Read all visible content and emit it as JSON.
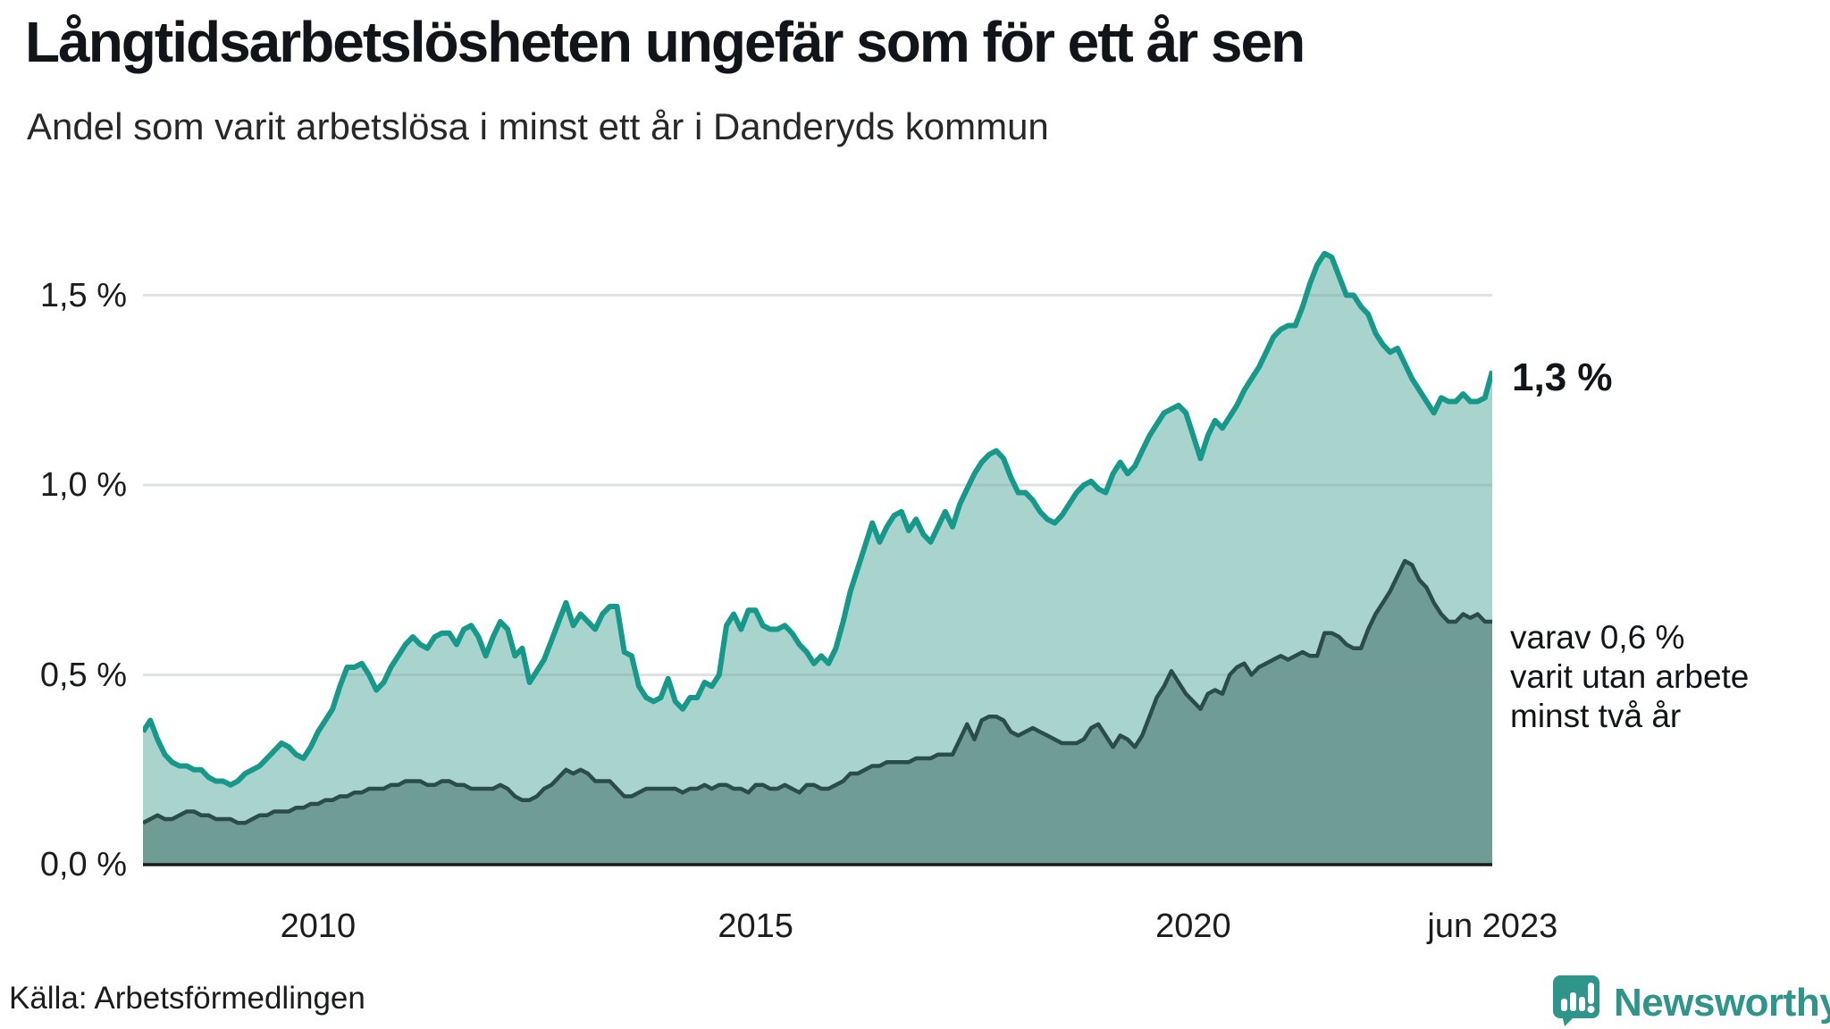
{
  "header": {
    "title": "Långtidsarbetslösheten ungefär som för ett år sen",
    "subtitle": "Andel som varit arbetslösa i minst ett år i Danderyds kommun"
  },
  "colors": {
    "line_1yr": "#16988a",
    "fill_1yr": "#a9d4cd",
    "line_2yr": "#2c4c47",
    "fill_2yr": "#6f9c95",
    "gridline": "rgba(140,150,152,0.28)",
    "axis": "#191b1c",
    "brand_teal": "#2f9489"
  },
  "labels": {
    "end_value_label": "1,3 %",
    "annotation_line1": "varav 0,6 %",
    "annotation_line2": "varit utan arbete",
    "annotation_line3": "minst två år",
    "source": "Källa: Arbetsförmedlingen",
    "brand": "Newsworthy"
  },
  "chart_data": {
    "type": "area",
    "title": "Långtidsarbetslösheten ungefär som för ett år sen",
    "subtitle": "Andel som varit arbetslösa i minst ett år i Danderyds kommun",
    "unit": "%",
    "frequency": "monthly",
    "x_start": "2008-01",
    "x_end": "2023-06",
    "ylim": [
      0,
      1.7
    ],
    "grid": "horizontal",
    "y_ticks": [
      {
        "value": 1.5,
        "label": "1,5 %"
      },
      {
        "value": 1.0,
        "label": "1,0 %"
      },
      {
        "value": 0.5,
        "label": "0,5 %"
      },
      {
        "value": 0.0,
        "label": "0,0 %"
      }
    ],
    "x_ticks": [
      {
        "year": 2010.0,
        "label": "2010"
      },
      {
        "year": 2015.0,
        "label": "2015"
      },
      {
        "year": 2020.0,
        "label": "2020"
      },
      {
        "year": 2023.42,
        "label": "jun 2023"
      }
    ],
    "series": [
      {
        "name": "Arbetslösa minst ett år",
        "end_label": "1,3 %",
        "values": [
          0.35,
          0.38,
          0.33,
          0.29,
          0.27,
          0.26,
          0.26,
          0.25,
          0.25,
          0.23,
          0.22,
          0.22,
          0.21,
          0.22,
          0.24,
          0.25,
          0.26,
          0.28,
          0.3,
          0.32,
          0.31,
          0.29,
          0.28,
          0.31,
          0.35,
          0.38,
          0.41,
          0.47,
          0.52,
          0.52,
          0.53,
          0.5,
          0.46,
          0.48,
          0.52,
          0.55,
          0.58,
          0.6,
          0.58,
          0.57,
          0.6,
          0.61,
          0.61,
          0.58,
          0.62,
          0.63,
          0.6,
          0.55,
          0.6,
          0.64,
          0.62,
          0.55,
          0.57,
          0.48,
          0.51,
          0.54,
          0.59,
          0.64,
          0.69,
          0.63,
          0.66,
          0.64,
          0.62,
          0.66,
          0.68,
          0.68,
          0.56,
          0.55,
          0.47,
          0.44,
          0.43,
          0.44,
          0.49,
          0.43,
          0.41,
          0.44,
          0.44,
          0.48,
          0.47,
          0.5,
          0.63,
          0.66,
          0.62,
          0.67,
          0.67,
          0.63,
          0.62,
          0.62,
          0.63,
          0.61,
          0.58,
          0.56,
          0.53,
          0.55,
          0.53,
          0.57,
          0.64,
          0.72,
          0.78,
          0.84,
          0.9,
          0.85,
          0.89,
          0.92,
          0.93,
          0.88,
          0.91,
          0.87,
          0.85,
          0.89,
          0.93,
          0.89,
          0.95,
          0.99,
          1.03,
          1.06,
          1.08,
          1.09,
          1.07,
          1.02,
          0.98,
          0.98,
          0.96,
          0.93,
          0.91,
          0.9,
          0.92,
          0.95,
          0.98,
          1.0,
          1.01,
          0.99,
          0.98,
          1.03,
          1.06,
          1.03,
          1.05,
          1.09,
          1.13,
          1.16,
          1.19,
          1.2,
          1.21,
          1.19,
          1.13,
          1.07,
          1.13,
          1.17,
          1.15,
          1.18,
          1.21,
          1.25,
          1.28,
          1.31,
          1.35,
          1.39,
          1.41,
          1.42,
          1.42,
          1.47,
          1.53,
          1.58,
          1.61,
          1.6,
          1.55,
          1.5,
          1.5,
          1.47,
          1.45,
          1.4,
          1.37,
          1.35,
          1.36,
          1.32,
          1.28,
          1.25,
          1.22,
          1.19,
          1.23,
          1.22,
          1.22,
          1.24,
          1.22,
          1.22,
          1.23,
          1.3
        ]
      },
      {
        "name": "varav varit utan arbete minst två år",
        "end_label": "varav 0,6 % varit utan arbete minst två år",
        "values": [
          0.11,
          0.12,
          0.13,
          0.12,
          0.12,
          0.13,
          0.14,
          0.14,
          0.13,
          0.13,
          0.12,
          0.12,
          0.12,
          0.11,
          0.11,
          0.12,
          0.13,
          0.13,
          0.14,
          0.14,
          0.14,
          0.15,
          0.15,
          0.16,
          0.16,
          0.17,
          0.17,
          0.18,
          0.18,
          0.19,
          0.19,
          0.2,
          0.2,
          0.2,
          0.21,
          0.21,
          0.22,
          0.22,
          0.22,
          0.21,
          0.21,
          0.22,
          0.22,
          0.21,
          0.21,
          0.2,
          0.2,
          0.2,
          0.2,
          0.21,
          0.2,
          0.18,
          0.17,
          0.17,
          0.18,
          0.2,
          0.21,
          0.23,
          0.25,
          0.24,
          0.25,
          0.24,
          0.22,
          0.22,
          0.22,
          0.2,
          0.18,
          0.18,
          0.19,
          0.2,
          0.2,
          0.2,
          0.2,
          0.2,
          0.19,
          0.2,
          0.2,
          0.21,
          0.2,
          0.21,
          0.21,
          0.2,
          0.2,
          0.19,
          0.21,
          0.21,
          0.2,
          0.2,
          0.21,
          0.2,
          0.19,
          0.21,
          0.21,
          0.2,
          0.2,
          0.21,
          0.22,
          0.24,
          0.24,
          0.25,
          0.26,
          0.26,
          0.27,
          0.27,
          0.27,
          0.27,
          0.28,
          0.28,
          0.28,
          0.29,
          0.29,
          0.29,
          0.33,
          0.37,
          0.33,
          0.38,
          0.39,
          0.39,
          0.38,
          0.35,
          0.34,
          0.35,
          0.36,
          0.35,
          0.34,
          0.33,
          0.32,
          0.32,
          0.32,
          0.33,
          0.36,
          0.37,
          0.34,
          0.31,
          0.34,
          0.33,
          0.31,
          0.34,
          0.39,
          0.44,
          0.47,
          0.51,
          0.48,
          0.45,
          0.43,
          0.41,
          0.45,
          0.46,
          0.45,
          0.5,
          0.52,
          0.53,
          0.5,
          0.52,
          0.53,
          0.54,
          0.55,
          0.54,
          0.55,
          0.56,
          0.55,
          0.55,
          0.61,
          0.61,
          0.6,
          0.58,
          0.57,
          0.57,
          0.62,
          0.66,
          0.69,
          0.72,
          0.76,
          0.8,
          0.79,
          0.75,
          0.73,
          0.69,
          0.66,
          0.64,
          0.64,
          0.66,
          0.65,
          0.66,
          0.64,
          0.64
        ]
      }
    ]
  }
}
